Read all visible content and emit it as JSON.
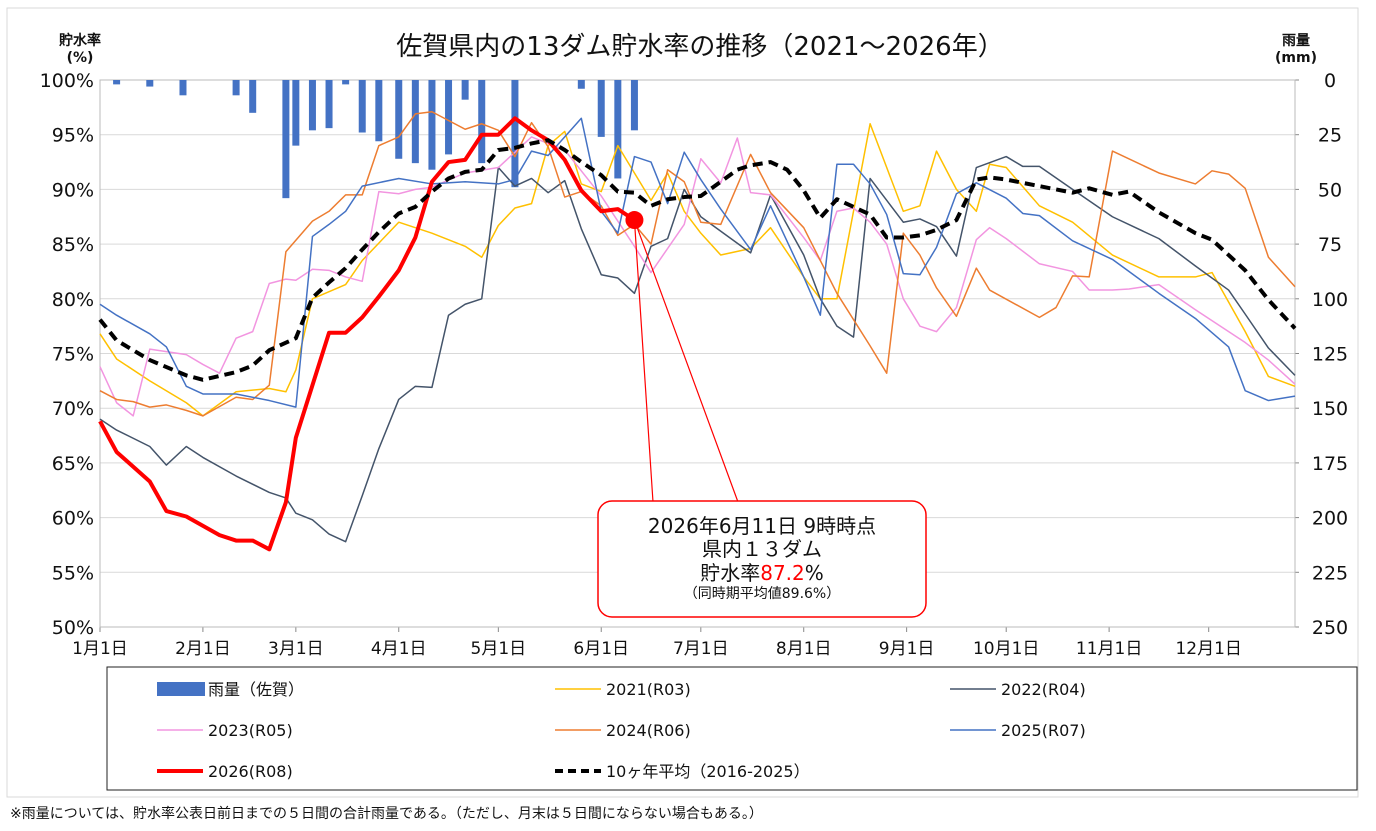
{
  "chart_data": {
    "type": "line",
    "title": "佐賀県内の13ダム貯水率の推移（2021～2026年）",
    "y_axis_title": [
      "貯水率",
      "(%)"
    ],
    "y2_axis_title": [
      "雨量",
      "(mm)"
    ],
    "xlim": [
      0,
      360
    ],
    "xticks": [
      {
        "value": 0,
        "label": "1月1日"
      },
      {
        "value": 31,
        "label": "2月1日"
      },
      {
        "value": 59,
        "label": "3月1日"
      },
      {
        "value": 90,
        "label": "4月1日"
      },
      {
        "value": 120,
        "label": "5月1日"
      },
      {
        "value": 151,
        "label": "6月1日"
      },
      {
        "value": 181,
        "label": "7月1日"
      },
      {
        "value": 212,
        "label": "8月1日"
      },
      {
        "value": 243,
        "label": "9月1日"
      },
      {
        "value": 273,
        "label": "10月1日"
      },
      {
        "value": 304,
        "label": "11月1日"
      },
      {
        "value": 334,
        "label": "12月1日"
      }
    ],
    "ylim": [
      50,
      100
    ],
    "yticks": [
      {
        "value": 50,
        "label": "50%"
      },
      {
        "value": 55,
        "label": "55%"
      },
      {
        "value": 60,
        "label": "60%"
      },
      {
        "value": 65,
        "label": "65%"
      },
      {
        "value": 70,
        "label": "70%"
      },
      {
        "value": 75,
        "label": "75%"
      },
      {
        "value": 80,
        "label": "80%"
      },
      {
        "value": 85,
        "label": "85%"
      },
      {
        "value": 90,
        "label": "90%"
      },
      {
        "value": 95,
        "label": "95%"
      },
      {
        "value": 100,
        "label": "100%"
      }
    ],
    "y2lim": [
      250,
      0
    ],
    "y2ticks": [
      0,
      25,
      50,
      75,
      100,
      125,
      150,
      175,
      200,
      225,
      250
    ],
    "grid": true,
    "legend": "bottom",
    "series": [
      {
        "name": "雨量（佐賀）",
        "type": "bar",
        "axis": "y2",
        "color": "#4472c4",
        "x": [
          5,
          15,
          25,
          41,
          46,
          56,
          59,
          64,
          69,
          74,
          79,
          84,
          90,
          95,
          100,
          105,
          110,
          115,
          125,
          145,
          151,
          156,
          161
        ],
        "values": [
          2,
          3,
          7,
          7,
          15,
          54,
          30,
          23,
          22,
          2,
          24,
          28,
          36,
          38,
          41,
          34,
          9,
          38,
          49,
          4,
          26,
          45,
          23
        ]
      },
      {
        "name": "2021(R03)",
        "color": "#ffc000",
        "dash": false,
        "width": 1.5,
        "x": [
          0,
          5,
          15,
          26,
          31,
          41,
          51,
          56,
          59,
          64,
          74,
          79,
          90,
          100,
          110,
          115,
          120,
          125,
          130,
          135,
          140,
          145,
          151,
          156,
          161,
          166,
          171,
          176,
          181,
          187,
          196,
          202,
          212,
          217,
          222,
          227,
          232,
          237,
          242,
          247,
          252,
          258,
          264,
          268,
          273,
          283,
          293,
          305,
          319,
          330,
          335,
          345,
          352,
          360
        ],
        "values": [
          76.8,
          74.5,
          72.5,
          70.5,
          69.3,
          71.5,
          71.8,
          71.5,
          73.5,
          80,
          81.3,
          83.5,
          87,
          86,
          84.8,
          83.8,
          86.7,
          88.3,
          88.7,
          94,
          95.3,
          90.5,
          89.8,
          94,
          91.5,
          89,
          91.5,
          88,
          86,
          84,
          84.6,
          86.5,
          82,
          80,
          80,
          88,
          96,
          92,
          88,
          88.5,
          93.5,
          90,
          88,
          92.3,
          92,
          88.5,
          87,
          84,
          82,
          82,
          82.4,
          77,
          72.9,
          72
        ]
      },
      {
        "name": "2022(R04)",
        "color": "#44546a",
        "dash": false,
        "width": 1.5,
        "x": [
          0,
          5,
          15,
          20,
          26,
          31,
          41,
          51,
          56,
          59,
          64,
          69,
          74,
          79,
          84,
          90,
          95,
          100,
          105,
          110,
          115,
          120,
          125,
          130,
          135,
          140,
          145,
          151,
          156,
          161,
          166,
          171,
          176,
          181,
          196,
          202,
          212,
          217,
          222,
          227,
          232,
          237,
          242,
          247,
          252,
          258,
          264,
          273,
          278,
          283,
          293,
          305,
          319,
          330,
          340,
          345,
          352,
          360
        ],
        "values": [
          69,
          68,
          66.5,
          64.8,
          66.5,
          65.5,
          63.8,
          62.3,
          61.8,
          60.4,
          59.8,
          58.5,
          57.8,
          62,
          66.3,
          70.8,
          72,
          71.9,
          78.5,
          79.5,
          80,
          92,
          90.3,
          91,
          89.7,
          90.8,
          86.4,
          82.2,
          81.9,
          80.5,
          84.8,
          85.5,
          90,
          87.5,
          84.2,
          89.5,
          84,
          80,
          77.5,
          76.5,
          91,
          89,
          87,
          87.3,
          86.6,
          83.9,
          92,
          93,
          92.1,
          92.1,
          90,
          87.5,
          85.5,
          83,
          80.8,
          78.6,
          75.5,
          73
        ]
      },
      {
        "name": "2023(R05)",
        "color": "#f295e0",
        "dash": false,
        "width": 1.5,
        "x": [
          0,
          5,
          10,
          15,
          26,
          31,
          36,
          41,
          46,
          51,
          56,
          59,
          64,
          69,
          74,
          79,
          84,
          90,
          95,
          100,
          110,
          120,
          130,
          140,
          151,
          161,
          166,
          176,
          181,
          187,
          192,
          196,
          202,
          212,
          217,
          222,
          227,
          232,
          237,
          242,
          247,
          252,
          258,
          264,
          268,
          273,
          283,
          293,
          298,
          305,
          310,
          319,
          330,
          345,
          352,
          360
        ],
        "values": [
          73.8,
          70.5,
          69.3,
          75.4,
          74.9,
          74,
          73.2,
          76.4,
          77,
          81.4,
          81.8,
          81.7,
          82.7,
          82.6,
          82,
          81.6,
          89.8,
          89.6,
          90,
          90.2,
          91.5,
          92,
          94.8,
          93.6,
          89.4,
          84.8,
          82.4,
          86.8,
          92.8,
          90.6,
          94.7,
          89.7,
          89.5,
          85.6,
          83.5,
          88,
          88.3,
          87,
          85,
          80,
          77.5,
          77,
          79.2,
          85.4,
          86.5,
          85.5,
          83.2,
          82.5,
          80.8,
          80.8,
          80.9,
          81.3,
          79,
          76,
          74.4,
          72.2
        ]
      },
      {
        "name": "2024(R06)",
        "color": "#ed7d31",
        "dash": false,
        "width": 1.5,
        "x": [
          0,
          5,
          10,
          15,
          20,
          26,
          31,
          41,
          46,
          51,
          56,
          64,
          69,
          74,
          79,
          84,
          90,
          95,
          100,
          105,
          110,
          115,
          120,
          125,
          130,
          135,
          140,
          145,
          151,
          156,
          161,
          166,
          171,
          176,
          181,
          187,
          196,
          202,
          212,
          222,
          232,
          237,
          242,
          247,
          252,
          258,
          264,
          268,
          283,
          288,
          293,
          298,
          305,
          319,
          330,
          335,
          340,
          345,
          352,
          360
        ],
        "values": [
          71.6,
          70.8,
          70.6,
          70.1,
          70.3,
          69.8,
          69.3,
          71,
          70.8,
          72.1,
          84.3,
          87.1,
          88,
          89.5,
          89.5,
          94,
          94.8,
          96.9,
          97.1,
          96.3,
          95.5,
          96,
          95.4,
          93,
          96.1,
          93.9,
          89.3,
          89.8,
          88.5,
          85.8,
          86.8,
          85,
          91.8,
          90.7,
          87,
          86.8,
          93.2,
          89.7,
          86.5,
          80.5,
          75.7,
          73.2,
          86,
          84,
          81,
          78.4,
          82.8,
          80.8,
          78.3,
          79.2,
          82.1,
          82,
          93.5,
          91.5,
          90.5,
          91.7,
          91.4,
          90.1,
          83.8,
          81.1
        ]
      },
      {
        "name": "2025(R07)",
        "color": "#4472c4",
        "dash": false,
        "width": 1.5,
        "x": [
          0,
          5,
          15,
          20,
          26,
          31,
          41,
          51,
          59,
          64,
          69,
          74,
          79,
          90,
          100,
          110,
          120,
          125,
          130,
          135,
          140,
          145,
          151,
          156,
          161,
          166,
          171,
          176,
          181,
          187,
          196,
          202,
          212,
          217,
          222,
          227,
          232,
          237,
          242,
          247,
          252,
          258,
          264,
          273,
          278,
          283,
          293,
          305,
          319,
          330,
          340,
          345,
          352,
          360
        ],
        "values": [
          79.5,
          78.5,
          76.8,
          75.6,
          72,
          71.3,
          71.3,
          70.7,
          70.1,
          85.7,
          86.8,
          88,
          90.3,
          91,
          90.5,
          90.7,
          90.5,
          90.9,
          93.5,
          93.1,
          94.8,
          96.5,
          88,
          86,
          93,
          92.5,
          88.7,
          93.4,
          90.9,
          88.2,
          84.5,
          88.5,
          82,
          78.5,
          92.3,
          92.3,
          90.5,
          87.7,
          82.3,
          82.2,
          84.7,
          89.6,
          90.6,
          89.2,
          87.8,
          87.6,
          85.3,
          83.6,
          80.5,
          78.2,
          75.6,
          71.6,
          70.7,
          71.1
        ]
      },
      {
        "name": "2026(R08)",
        "color": "#ff0000",
        "dash": false,
        "width": 4,
        "x": [
          0,
          5,
          15,
          20,
          26,
          36,
          41,
          46,
          51,
          56,
          59,
          64,
          69,
          74,
          79,
          84,
          90,
          95,
          100,
          105,
          110,
          115,
          120,
          125,
          130,
          135,
          140,
          145,
          151,
          156,
          161
        ],
        "values": [
          68.8,
          66,
          63.3,
          60.6,
          60.1,
          58.4,
          57.9,
          57.9,
          57.1,
          61.4,
          67.3,
          72.1,
          76.9,
          76.9,
          78.3,
          80.2,
          82.6,
          85.6,
          90.7,
          92.5,
          92.7,
          95,
          95,
          96.5,
          95.4,
          94.5,
          92.7,
          89.9,
          88,
          88.2,
          87.2
        ]
      },
      {
        "name": "10ヶ年平均（2016-2025）",
        "color": "#000000",
        "dash": true,
        "width": 4,
        "x": [
          0,
          5,
          15,
          26,
          31,
          41,
          46,
          51,
          59,
          64,
          69,
          74,
          79,
          84,
          90,
          95,
          100,
          105,
          110,
          115,
          120,
          125,
          130,
          135,
          140,
          145,
          151,
          156,
          161,
          166,
          171,
          176,
          181,
          187,
          192,
          196,
          202,
          207,
          212,
          217,
          222,
          227,
          232,
          237,
          242,
          247,
          252,
          258,
          264,
          268,
          273,
          283,
          293,
          298,
          305,
          310,
          319,
          330,
          335,
          345,
          352,
          360
        ],
        "values": [
          78.1,
          76.2,
          74.4,
          73,
          72.6,
          73.3,
          73.9,
          75.3,
          76.4,
          80.1,
          81.5,
          82.8,
          84.5,
          86.1,
          87.8,
          88.4,
          89.8,
          91,
          91.6,
          91.8,
          93.6,
          93.8,
          94.2,
          94.5,
          93.6,
          92.5,
          91.3,
          89.8,
          89.7,
          88.5,
          89.1,
          89.3,
          89.4,
          90.7,
          91.8,
          92.2,
          92.5,
          91.8,
          89.9,
          87.4,
          89.1,
          88.4,
          87.7,
          85.6,
          85.6,
          85.8,
          86.3,
          87.2,
          90.9,
          91.1,
          90.9,
          90.3,
          89.7,
          90.1,
          89.5,
          89.8,
          87.9,
          86,
          85.4,
          82.6,
          79.9,
          77.3
        ]
      }
    ],
    "annotation": {
      "lines": [
        "2026年6月11日 9時時点",
        "県内１３ダム"
      ],
      "rate_label": "貯水率",
      "rate_value": 87.2,
      "rate_unit": "%",
      "note": "（同時期平均値89.6%）"
    },
    "footnote": "※雨量については、貯水率公表日前日までの５日間の合計雨量である。（ただし、月末は５日間にならない場合もある。）"
  }
}
